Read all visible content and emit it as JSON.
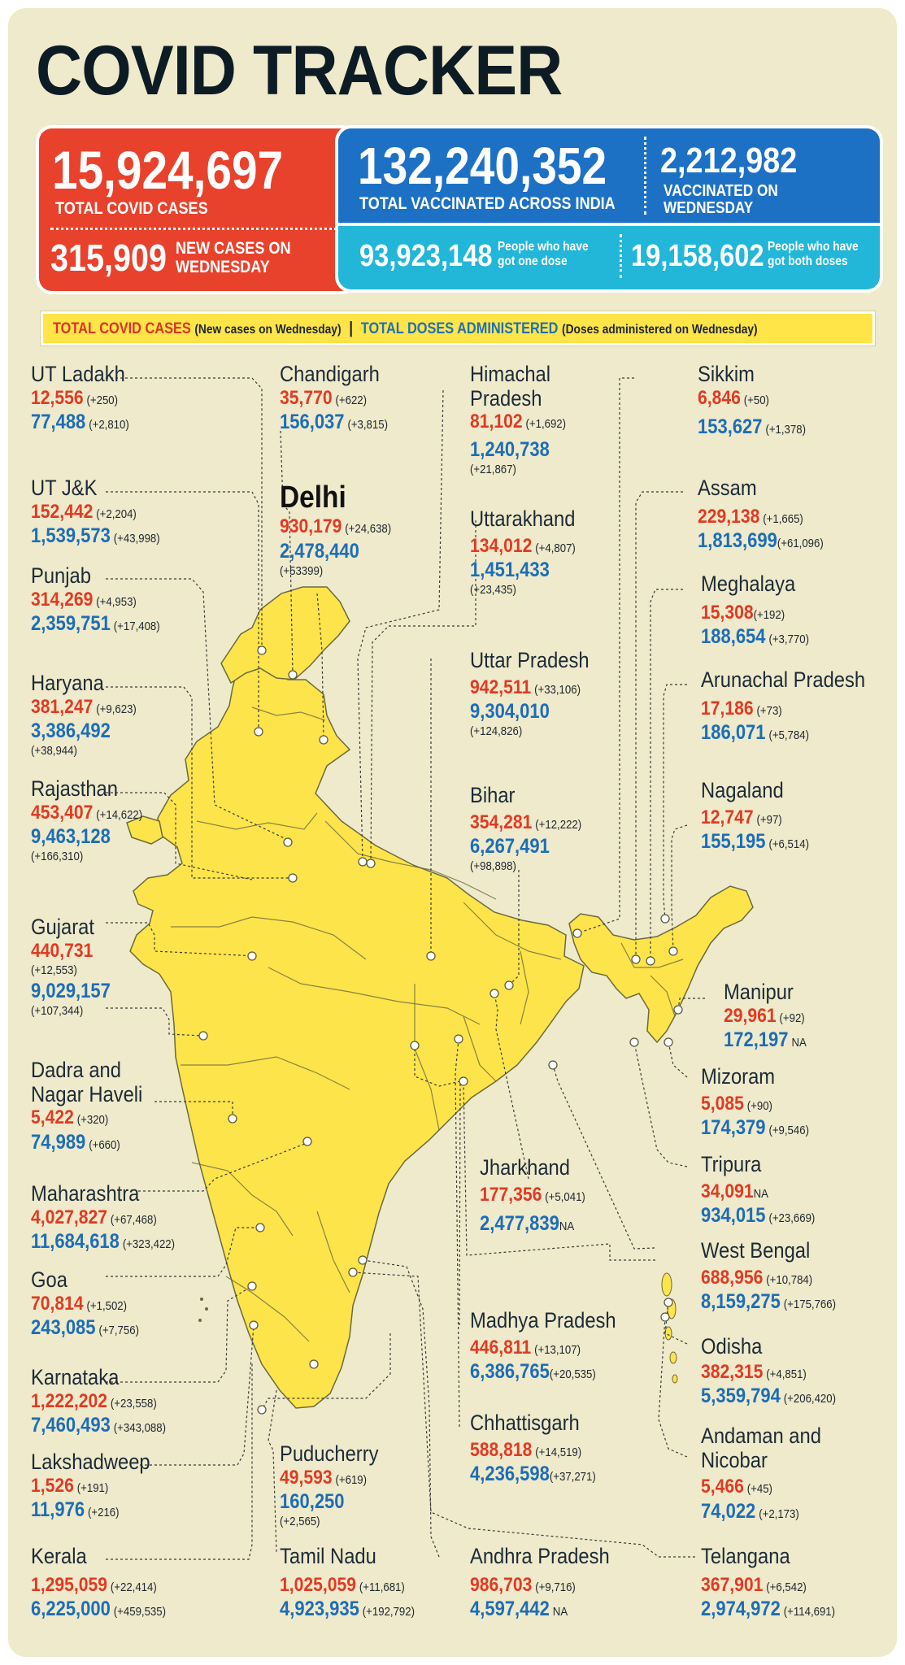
{
  "title": "COVID TRACKER",
  "totals": {
    "total_cases": "15,924,697",
    "total_cases_label": "TOTAL COVID CASES",
    "new_cases": "315,909",
    "new_cases_label_1": "NEW CASES ON",
    "new_cases_label_2": "WEDNESDAY",
    "total_vaccinated": "132,240,352",
    "total_vaccinated_label": "TOTAL VACCINATED ACROSS INDIA",
    "vaccinated_wed": "2,212,982",
    "vaccinated_wed_label_1": "VACCINATED ON",
    "vaccinated_wed_label_2": "WEDNESDAY",
    "one_dose": "93,923,148",
    "one_dose_label_1": "People who have",
    "one_dose_label_2": "got one dose",
    "both_doses": "19,158,602",
    "both_doses_label_1": "People who have",
    "both_doses_label_2": "got both doses"
  },
  "legend": {
    "cases": "TOTAL COVID CASES",
    "cases_note": "(New cases on Wednesday)",
    "sep": "|",
    "doses": "TOTAL DOSES ADMINISTERED",
    "doses_note": "(Doses administered on Wednesday)"
  },
  "colors": {
    "map_fill": "#fde44a",
    "cases_red": "#e13a23",
    "doses_blue": "#1d6db7",
    "background": "#eeeacb"
  },
  "states": {
    "ladakh": {
      "name": "UT Ladakh",
      "cases": "12,556",
      "cases_new": "(+250)",
      "doses": "77,488",
      "doses_new": "(+2,810)"
    },
    "jk": {
      "name": "UT J&K",
      "cases": "152,442",
      "cases_new": "(+2,204)",
      "doses": "1,539,573",
      "doses_new": "(+43,998)"
    },
    "punjab": {
      "name": "Punjab",
      "cases": "314,269",
      "cases_new": "(+4,953)",
      "doses": "2,359,751",
      "doses_new": "(+17,408)"
    },
    "haryana": {
      "name": "Haryana",
      "cases": "381,247",
      "cases_new": "(+9,623)",
      "doses": "3,386,492",
      "doses_new": "(+38,944)"
    },
    "rajasthan": {
      "name": "Rajasthan",
      "cases": "453,407",
      "cases_new": "(+14,622)",
      "doses": "9,463,128",
      "doses_new": "(+166,310)"
    },
    "gujarat": {
      "name": "Gujarat",
      "cases": "440,731",
      "cases_new": "(+12,553)",
      "doses": "9,029,157",
      "doses_new": "(+107,344)"
    },
    "dnh_1": "Dadra and",
    "dnh": {
      "name": "Nagar Haveli",
      "cases": "5,422",
      "cases_new": "(+320)",
      "doses": "74,989",
      "doses_new": "(+660)"
    },
    "maharashtra": {
      "name": "Maharashtra",
      "cases": "4,027,827",
      "cases_new": "(+67,468)",
      "doses": "11,684,618",
      "doses_new": "(+323,422)"
    },
    "goa": {
      "name": "Goa",
      "cases": "70,814",
      "cases_new": "(+1,502)",
      "doses": "243,085",
      "doses_new": "(+7,756)"
    },
    "karnataka": {
      "name": "Karnataka",
      "cases": "1,222,202",
      "cases_new": "(+23,558)",
      "doses": "7,460,493",
      "doses_new": "(+343,088)"
    },
    "lakshadweep": {
      "name": "Lakshadweep",
      "cases": "1,526",
      "cases_new": "(+191)",
      "doses": "11,976",
      "doses_new": "(+216)"
    },
    "kerala": {
      "name": "Kerala",
      "cases": "1,295,059",
      "cases_new": "(+22,414)",
      "doses": "6,225,000",
      "doses_new": "(+459,535)"
    },
    "chandigarh": {
      "name": "Chandigarh",
      "cases": "35,770",
      "cases_new": "(+622)",
      "doses": "156,037",
      "doses_new": "(+3,815)"
    },
    "delhi": {
      "name": "Delhi",
      "cases": "930,179",
      "cases_new": "(+24,638)",
      "doses": "2,478,440",
      "doses_new": "(+53399)"
    },
    "puducherry": {
      "name": "Puducherry",
      "cases": "49,593",
      "cases_new": "(+619)",
      "doses": "160,250",
      "doses_new": "(+2,565)"
    },
    "tamilnadu": {
      "name": "Tamil Nadu",
      "cases": "1,025,059",
      "cases_new": "(+11,681)",
      "doses": "4,923,935",
      "doses_new": "(+192,792)"
    },
    "hp_1": "Himachal",
    "hp": {
      "name": "Pradesh",
      "cases": "81,102",
      "cases_new": "(+1,692)",
      "doses": "1,240,738",
      "doses_new": "(+21,867)"
    },
    "uttarakhand": {
      "name": "Uttarakhand",
      "cases": "134,012",
      "cases_new": "(+4,807)",
      "doses": "1,451,433",
      "doses_new": "(+23,435)"
    },
    "up": {
      "name": "Uttar Pradesh",
      "cases": "942,511",
      "cases_new": "(+33,106)",
      "doses": "9,304,010",
      "doses_new": "(+124,826)"
    },
    "bihar": {
      "name": "Bihar",
      "cases": "354,281",
      "cases_new": "(+12,222)",
      "doses": "6,267,491",
      "doses_new": "(+98,898)"
    },
    "jharkhand": {
      "name": "Jharkhand",
      "cases": "177,356",
      "cases_new": "(+5,041)",
      "doses": "2,477,839",
      "doses_new": "NA"
    },
    "mp": {
      "name": "Madhya Pradesh",
      "cases": "446,811",
      "cases_new": "(+13,107)",
      "doses": "6,386,765",
      "doses_new": "(+20,535)"
    },
    "chhattisgarh": {
      "name": "Chhattisgarh",
      "cases": "588,818",
      "cases_new": "(+14,519)",
      "doses": "4,236,598",
      "doses_new": "(+37,271)"
    },
    "ap": {
      "name": "Andhra Pradesh",
      "cases": "986,703",
      "cases_new": "(+9,716)",
      "doses": "4,597,442",
      "doses_new": "NA"
    },
    "sikkim": {
      "name": "Sikkim",
      "cases": "6,846",
      "cases_new": "(+50)",
      "doses": "153,627",
      "doses_new": "(+1,378)"
    },
    "assam": {
      "name": "Assam",
      "cases": "229,138",
      "cases_new": "(+1,665)",
      "doses": "1,813,699",
      "doses_new": "(+61,096)"
    },
    "meghalaya": {
      "name": "Meghalaya",
      "cases": "15,308",
      "cases_new": "(+192)",
      "doses": "188,654",
      "doses_new": "(+3,770)"
    },
    "arunachal": {
      "name": "Arunachal Pradesh",
      "cases": "17,186",
      "cases_new": "(+73)",
      "doses": "186,071",
      "doses_new": "(+5,784)"
    },
    "nagaland": {
      "name": "Nagaland",
      "cases": "12,747",
      "cases_new": "(+97)",
      "doses": "155,195",
      "doses_new": "(+6,514)"
    },
    "manipur": {
      "name": "Manipur",
      "cases": "29,961",
      "cases_new": "(+92)",
      "doses": "172,197",
      "doses_new": "NA"
    },
    "mizoram": {
      "name": "Mizoram",
      "cases": "5,085",
      "cases_new": "(+90)",
      "doses": "174,379",
      "doses_new": "(+9,546)"
    },
    "tripura": {
      "name": "Tripura",
      "cases": "34,091",
      "cases_new": "NA",
      "doses": "934,015",
      "doses_new": "(+23,669)"
    },
    "westbengal": {
      "name": "West Bengal",
      "cases": "688,956",
      "cases_new": "(+10,784)",
      "doses": "8,159,275",
      "doses_new": "(+175,766)"
    },
    "odisha": {
      "name": "Odisha",
      "cases": "382,315",
      "cases_new": "(+4,851)",
      "doses": "5,359,794",
      "doses_new": "(+206,420)"
    },
    "andaman_1": "Andaman and",
    "andaman": {
      "name": "Nicobar",
      "cases": "5,466",
      "cases_new": "(+45)",
      "doses": "74,022",
      "doses_new": "(+2,173)"
    },
    "telangana": {
      "name": "Telangana",
      "cases": "367,901",
      "cases_new": "(+6,542)",
      "doses": "2,974,972",
      "doses_new": "(+114,691)"
    }
  }
}
